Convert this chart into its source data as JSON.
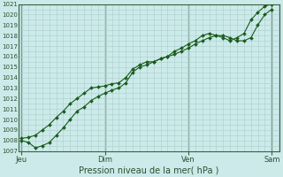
{
  "xlabel": "Pression niveau de la mer( hPa )",
  "bg_color": "#cceaea",
  "grid_color": "#aacccc",
  "line_color": "#1a5c1a",
  "ylim": [
    1007,
    1021
  ],
  "yticks": [
    1007,
    1008,
    1009,
    1010,
    1011,
    1012,
    1013,
    1014,
    1015,
    1016,
    1017,
    1018,
    1019,
    1020,
    1021
  ],
  "day_labels": [
    "Jeu",
    "Dim",
    "Ven",
    "Sam"
  ],
  "day_positions": [
    0.0,
    0.333,
    0.667,
    1.0
  ],
  "line1_x": [
    0.0,
    0.028,
    0.056,
    0.083,
    0.111,
    0.139,
    0.167,
    0.194,
    0.222,
    0.25,
    0.278,
    0.306,
    0.333,
    0.361,
    0.389,
    0.417,
    0.444,
    0.472,
    0.5,
    0.528,
    0.556,
    0.583,
    0.611,
    0.639,
    0.667,
    0.694,
    0.722,
    0.75,
    0.778,
    0.806,
    0.833,
    0.861,
    0.889,
    0.917,
    0.944,
    0.972,
    1.0
  ],
  "line1_y": [
    1008.2,
    1008.3,
    1008.5,
    1009.0,
    1009.5,
    1010.2,
    1010.8,
    1011.5,
    1012.0,
    1012.5,
    1013.0,
    1013.1,
    1013.2,
    1013.4,
    1013.5,
    1014.0,
    1014.8,
    1015.2,
    1015.5,
    1015.5,
    1015.8,
    1016.0,
    1016.2,
    1016.5,
    1016.8,
    1017.2,
    1017.5,
    1017.8,
    1018.0,
    1018.0,
    1017.8,
    1017.5,
    1017.5,
    1017.8,
    1019.0,
    1020.0,
    1020.5
  ],
  "line2_x": [
    0.0,
    0.028,
    0.056,
    0.083,
    0.111,
    0.139,
    0.167,
    0.194,
    0.222,
    0.25,
    0.278,
    0.306,
    0.333,
    0.361,
    0.389,
    0.417,
    0.444,
    0.472,
    0.5,
    0.528,
    0.556,
    0.583,
    0.611,
    0.639,
    0.667,
    0.694,
    0.722,
    0.75,
    0.778,
    0.806,
    0.833,
    0.861,
    0.889,
    0.917,
    0.944,
    0.972,
    1.0
  ],
  "line2_y": [
    1008.0,
    1007.8,
    1007.3,
    1007.5,
    1007.8,
    1008.5,
    1009.2,
    1010.0,
    1010.8,
    1011.2,
    1011.8,
    1012.2,
    1012.5,
    1012.8,
    1013.0,
    1013.5,
    1014.5,
    1015.0,
    1015.2,
    1015.5,
    1015.8,
    1016.0,
    1016.5,
    1016.8,
    1017.2,
    1017.5,
    1018.0,
    1018.2,
    1018.0,
    1017.8,
    1017.5,
    1017.8,
    1018.2,
    1019.5,
    1020.2,
    1020.8,
    1021.0
  ]
}
